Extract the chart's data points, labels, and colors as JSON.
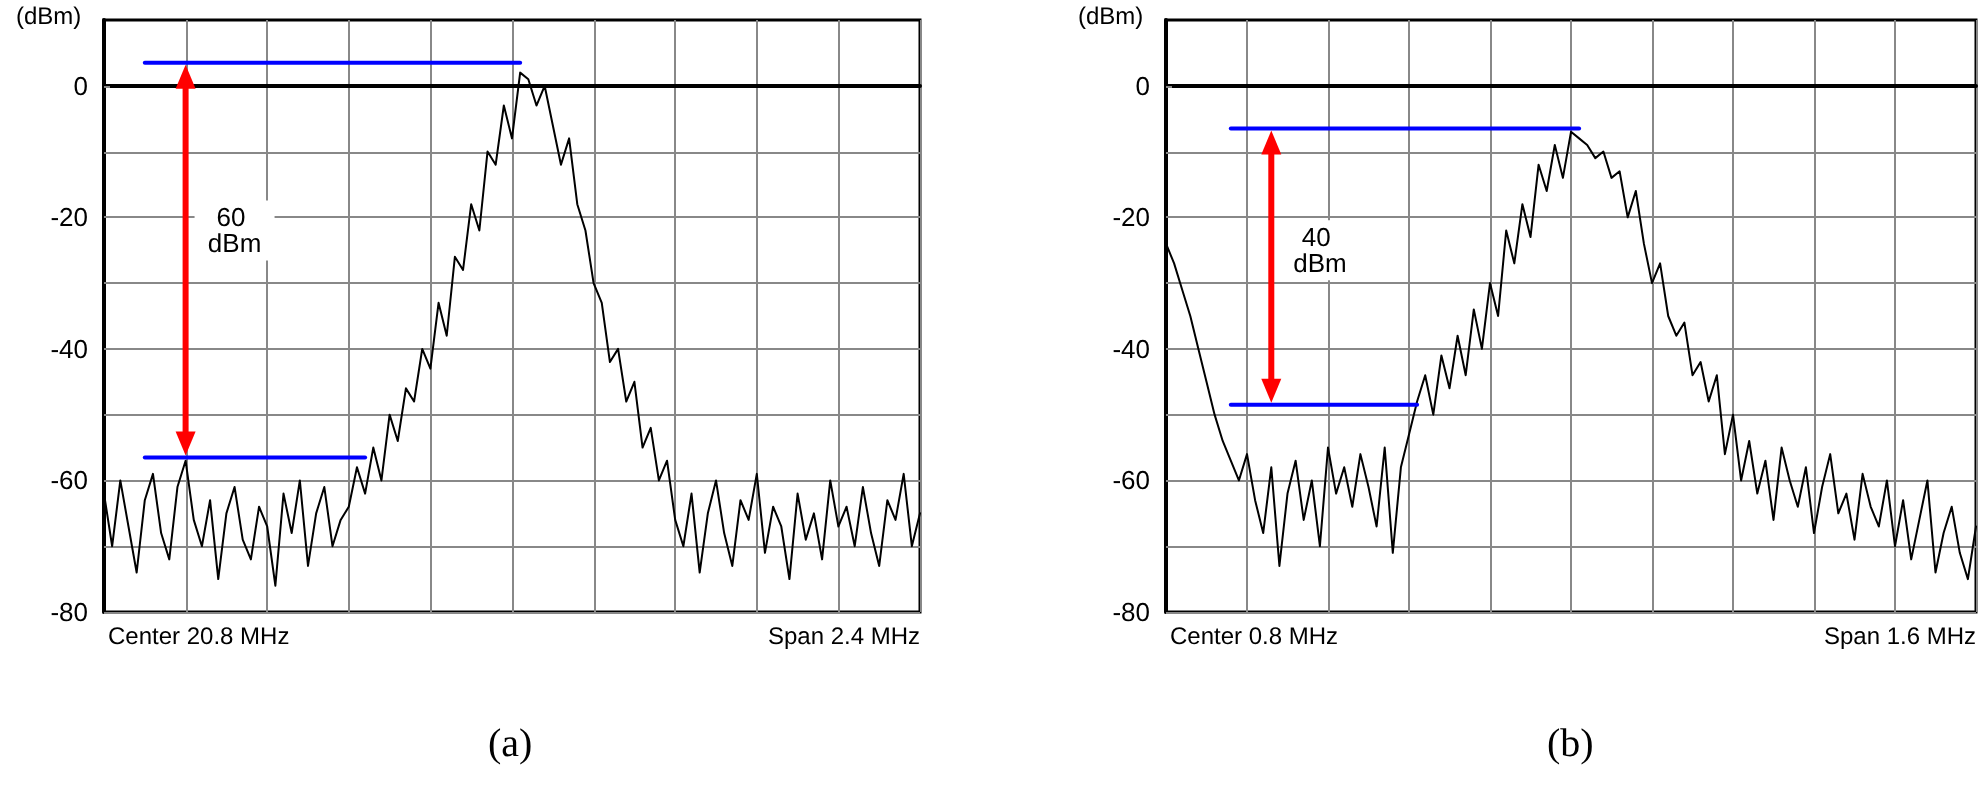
{
  "chart_data": [
    {
      "type": "line",
      "title": "(a)",
      "ylabel": "(dBm)",
      "grid": true,
      "marker": "none",
      "ylim": [
        -80,
        10
      ],
      "yticks": [
        -80,
        {
          "value": -70,
          "label": null
        },
        -60,
        {
          "value": -50,
          "label": null
        },
        -40,
        {
          "value": -30,
          "label": null
        },
        -20,
        {
          "value": -10,
          "label": null
        },
        0
      ],
      "annotations": [
        {
          "text": "60 dBm",
          "y": -22
        },
        "Center 20.8 MHz",
        "Span 2.4 MHz"
      ],
      "categories": [
        null,
        null,
        null,
        null,
        null,
        null,
        null,
        null,
        null,
        null,
        null,
        null,
        null,
        null,
        null,
        null,
        null,
        null,
        null,
        null,
        null,
        null,
        null,
        null,
        null,
        null,
        null,
        null,
        null,
        null,
        null,
        null,
        null,
        null,
        null,
        null,
        null,
        null,
        null,
        null,
        null,
        null,
        null,
        null,
        null,
        null,
        null,
        null,
        null,
        null,
        null,
        null,
        null,
        null,
        null,
        null,
        null,
        null,
        null,
        null,
        null,
        null,
        null,
        null,
        null,
        null,
        null,
        null,
        null,
        null,
        null,
        null,
        null,
        null,
        null,
        null,
        null,
        null,
        null,
        null,
        null,
        null,
        null,
        null,
        null,
        null,
        null,
        null,
        null,
        null,
        null,
        null,
        null,
        null,
        null,
        null,
        null,
        null,
        null,
        null,
        null
      ],
      "series": [
        {
          "color": "#000000",
          "values": [
            -62,
            -70,
            -60,
            -67,
            -74,
            -63,
            -59,
            -68,
            -72,
            -61,
            -57,
            -66,
            -70,
            -63,
            -75,
            -65,
            -61,
            -69,
            -72,
            -64,
            -67,
            -76,
            -62,
            -68,
            -60,
            -73,
            -65,
            -61,
            -70,
            -66,
            -64,
            -58,
            -62,
            -55,
            -60,
            -50,
            -54,
            -46,
            -48,
            -40,
            -43,
            -33,
            -38,
            -26,
            -28,
            -18,
            -22,
            -10,
            -12,
            -3,
            -8,
            2,
            1,
            -3,
            0,
            -6,
            -12,
            -8,
            -18,
            -22,
            -30,
            -33,
            -42,
            -40,
            -48,
            -45,
            -55,
            -52,
            -60,
            -57,
            -66,
            -70,
            -62,
            -74,
            -65,
            -60,
            -68,
            -73,
            -63,
            -66,
            -59,
            -71,
            -64,
            -67,
            -75,
            -62,
            -69,
            -65,
            -72,
            -60,
            -67,
            -64,
            -70,
            -61,
            -68,
            -73,
            -63,
            -66,
            -59,
            -70,
            -65
          ]
        },
        {
          "color": "#0000ff",
          "values": [
            null,
            null,
            null,
            null,
            null,
            3.5,
            3.5,
            3.5,
            3.5,
            3.5,
            3.5,
            3.5,
            3.5,
            3.5,
            3.5,
            3.5,
            3.5,
            3.5,
            3.5,
            3.5,
            3.5,
            3.5,
            3.5,
            3.5,
            3.5,
            3.5,
            3.5,
            3.5,
            3.5,
            3.5,
            3.5,
            3.5,
            3.5,
            3.5,
            3.5,
            3.5,
            3.5,
            3.5,
            3.5,
            3.5,
            3.5,
            3.5,
            3.5,
            3.5,
            3.5,
            3.5,
            3.5,
            3.5,
            3.5,
            3.5,
            3.5,
            3.5,
            null,
            null,
            null,
            null,
            null,
            null,
            null,
            null,
            null,
            null,
            null,
            null,
            null,
            null,
            null,
            null,
            null,
            null,
            null,
            null,
            null,
            null,
            null,
            null,
            null,
            null,
            null,
            null,
            null,
            null,
            null,
            null,
            null,
            null,
            null,
            null,
            null,
            null,
            null,
            null,
            null,
            null,
            null,
            null,
            null,
            null,
            null,
            null,
            null
          ]
        },
        {
          "color": "#0000ff",
          "values": [
            null,
            null,
            null,
            null,
            null,
            -56.5,
            -56.5,
            -56.5,
            -56.5,
            -56.5,
            -56.5,
            -56.5,
            -56.5,
            -56.5,
            -56.5,
            -56.5,
            -56.5,
            -56.5,
            -56.5,
            -56.5,
            -56.5,
            -56.5,
            -56.5,
            -56.5,
            -56.5,
            -56.5,
            -56.5,
            -56.5,
            -56.5,
            -56.5,
            -56.5,
            -56.5,
            -56.5,
            null,
            null,
            null,
            null,
            null,
            null,
            null,
            null,
            null,
            null,
            null,
            null,
            null,
            null,
            null,
            null,
            null,
            null,
            null,
            null,
            null,
            null,
            null,
            null,
            null,
            null,
            null,
            null,
            null,
            null,
            null,
            null,
            null,
            null,
            null,
            null,
            null,
            null,
            null,
            null,
            null,
            null,
            null,
            null,
            null,
            null,
            null,
            null,
            null,
            null,
            null,
            null,
            null,
            null,
            null,
            null,
            null,
            null,
            null,
            null,
            null,
            null,
            null,
            null,
            null,
            null,
            null,
            null
          ]
        }
      ]
    },
    {
      "type": "line",
      "title": "(b)",
      "ylabel": "(dBm)",
      "grid": true,
      "marker": "none",
      "ylim": [
        -80,
        10
      ],
      "yticks": [
        -80,
        {
          "value": -70,
          "label": null
        },
        -60,
        {
          "value": -50,
          "label": null
        },
        -40,
        {
          "value": -30,
          "label": null
        },
        -20,
        {
          "value": -10,
          "label": null
        },
        0
      ],
      "annotations": [
        {
          "text": "40 dBm",
          "y": -25
        },
        "Center 0.8 MHz",
        "Span 1.6 MHz"
      ],
      "categories": [
        null,
        null,
        null,
        null,
        null,
        null,
        null,
        null,
        null,
        null,
        null,
        null,
        null,
        null,
        null,
        null,
        null,
        null,
        null,
        null,
        null,
        null,
        null,
        null,
        null,
        null,
        null,
        null,
        null,
        null,
        null,
        null,
        null,
        null,
        null,
        null,
        null,
        null,
        null,
        null,
        null,
        null,
        null,
        null,
        null,
        null,
        null,
        null,
        null,
        null,
        null,
        null,
        null,
        null,
        null,
        null,
        null,
        null,
        null,
        null,
        null,
        null,
        null,
        null,
        null,
        null,
        null,
        null,
        null,
        null,
        null,
        null,
        null,
        null,
        null,
        null,
        null,
        null,
        null,
        null,
        null,
        null,
        null,
        null,
        null,
        null,
        null,
        null,
        null,
        null,
        null,
        null,
        null,
        null,
        null,
        null,
        null,
        null,
        null,
        null,
        null
      ],
      "series": [
        {
          "color": "#000000",
          "values": [
            -24,
            -27,
            -31,
            -35,
            -40,
            -45,
            -50,
            -54,
            -57,
            -60,
            -56,
            -63,
            -68,
            -58,
            -73,
            -62,
            -57,
            -66,
            -60,
            -70,
            -55,
            -62,
            -58,
            -64,
            -56,
            -61,
            -67,
            -55,
            -71,
            -58,
            -53,
            -48,
            -44,
            -50,
            -41,
            -46,
            -38,
            -44,
            -34,
            -40,
            -30,
            -35,
            -22,
            -27,
            -18,
            -23,
            -12,
            -16,
            -9,
            -14,
            -7,
            -8,
            -9,
            -11,
            -10,
            -14,
            -13,
            -20,
            -16,
            -24,
            -30,
            -27,
            -35,
            -38,
            -36,
            -44,
            -42,
            -48,
            -44,
            -56,
            -50,
            -60,
            -54,
            -62,
            -57,
            -66,
            -55,
            -60,
            -64,
            -58,
            -68,
            -61,
            -56,
            -65,
            -62,
            -69,
            -59,
            -64,
            -67,
            -60,
            -70,
            -63,
            -72,
            -66,
            -60,
            -74,
            -68,
            -64,
            -71,
            -75,
            -67
          ]
        },
        {
          "color": "#0000ff",
          "values": [
            null,
            null,
            null,
            null,
            null,
            null,
            null,
            null,
            -6.5,
            -6.5,
            -6.5,
            -6.5,
            -6.5,
            -6.5,
            -6.5,
            -6.5,
            -6.5,
            -6.5,
            -6.5,
            -6.5,
            -6.5,
            -6.5,
            -6.5,
            -6.5,
            -6.5,
            -6.5,
            -6.5,
            -6.5,
            -6.5,
            -6.5,
            -6.5,
            -6.5,
            -6.5,
            -6.5,
            -6.5,
            -6.5,
            -6.5,
            -6.5,
            -6.5,
            -6.5,
            -6.5,
            -6.5,
            -6.5,
            -6.5,
            -6.5,
            -6.5,
            -6.5,
            -6.5,
            -6.5,
            -6.5,
            -6.5,
            -6.5,
            null,
            null,
            null,
            null,
            null,
            null,
            null,
            null,
            null,
            null,
            null,
            null,
            null,
            null,
            null,
            null,
            null,
            null,
            null,
            null,
            null,
            null,
            null,
            null,
            null,
            null,
            null,
            null,
            null,
            null,
            null,
            null,
            null,
            null,
            null,
            null,
            null,
            null,
            null,
            null,
            null,
            null,
            null,
            null,
            null,
            null,
            null,
            null,
            null
          ]
        },
        {
          "color": "#0000ff",
          "values": [
            null,
            null,
            null,
            null,
            null,
            null,
            null,
            null,
            -48.5,
            -48.5,
            -48.5,
            -48.5,
            -48.5,
            -48.5,
            -48.5,
            -48.5,
            -48.5,
            -48.5,
            -48.5,
            -48.5,
            -48.5,
            -48.5,
            -48.5,
            -48.5,
            -48.5,
            -48.5,
            -48.5,
            -48.5,
            -48.5,
            -48.5,
            -48.5,
            -48.5,
            null,
            null,
            null,
            null,
            null,
            null,
            null,
            null,
            null,
            null,
            null,
            null,
            null,
            null,
            null,
            null,
            null,
            null,
            null,
            null,
            null,
            null,
            null,
            null,
            null,
            null,
            null,
            null,
            null,
            null,
            null,
            null,
            null,
            null,
            null,
            null,
            null,
            null,
            null,
            null,
            null,
            null,
            null,
            null,
            null,
            null,
            null,
            null,
            null,
            null,
            null,
            null,
            null,
            null,
            null,
            null,
            null,
            null,
            null,
            null,
            null,
            null,
            null,
            null,
            null,
            null,
            null,
            null,
            null
          ]
        }
      ]
    }
  ]
}
